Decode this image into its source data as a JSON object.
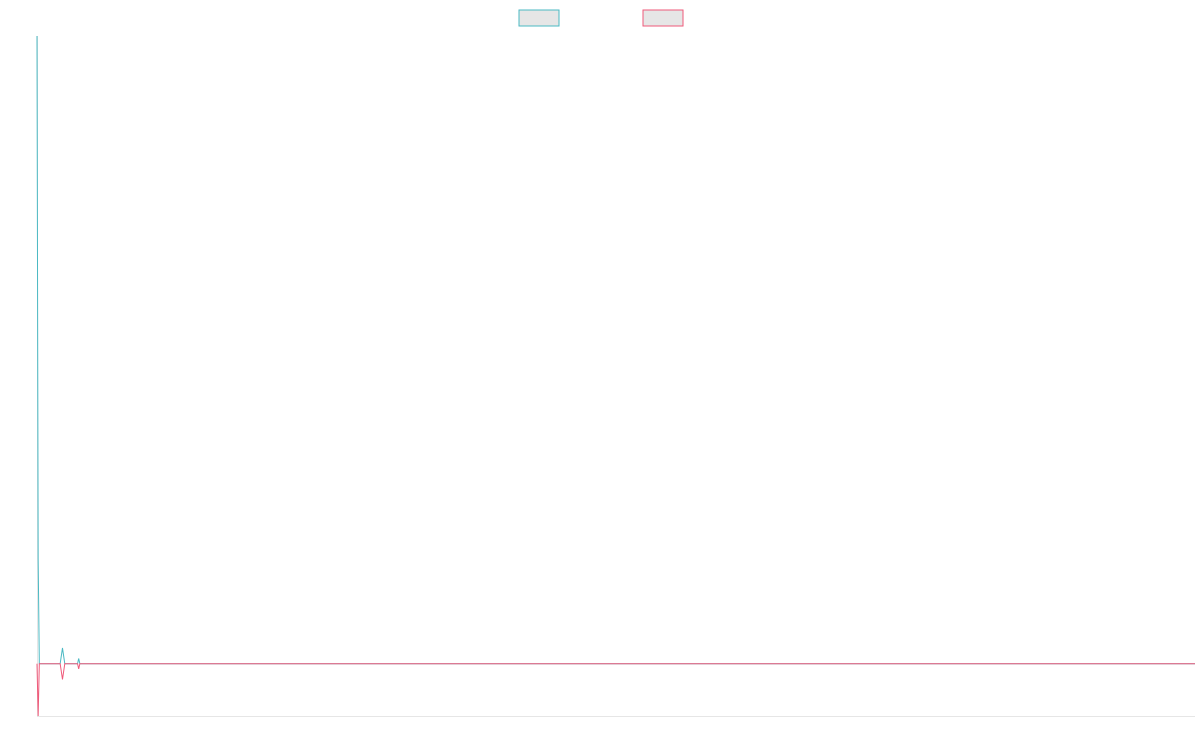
{
  "chart_data": {
    "type": "line",
    "title": "",
    "xlabel": "",
    "ylabel": "",
    "legend_placement": "top-center",
    "grid": false,
    "x_range": [
      0,
      1000
    ],
    "y_range": [
      -1,
      12
    ],
    "series": [
      {
        "name": "",
        "color": "#4bb9c3",
        "legend_fill": "#e6e6e6",
        "points": [
          [
            0,
            12
          ],
          [
            1,
            2
          ],
          [
            2,
            0
          ],
          [
            20,
            0
          ],
          [
            22,
            0.3
          ],
          [
            24,
            0
          ],
          [
            35,
            0
          ],
          [
            36,
            0.1
          ],
          [
            37,
            0
          ],
          [
            1000,
            0
          ]
        ]
      },
      {
        "name": "",
        "color": "#ef5a7a",
        "legend_fill": "#e6e6e6",
        "points": [
          [
            0,
            0
          ],
          [
            1,
            -1
          ],
          [
            2,
            0
          ],
          [
            20,
            0
          ],
          [
            22,
            -0.3
          ],
          [
            24,
            0
          ],
          [
            35,
            0
          ],
          [
            36,
            -0.1
          ],
          [
            37,
            0
          ],
          [
            1000,
            0
          ]
        ]
      }
    ]
  }
}
